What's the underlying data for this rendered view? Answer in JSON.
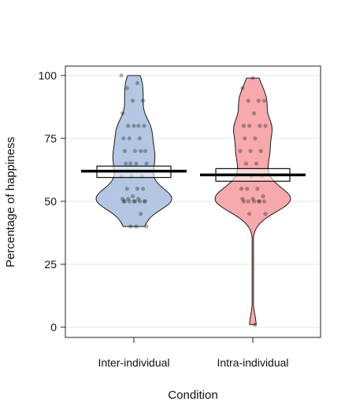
{
  "chart_data": {
    "type": "violin",
    "title": "",
    "xlabel": "Condition",
    "ylabel": "Percentage of happiness",
    "ylim": [
      0,
      100
    ],
    "yticks": [
      0,
      25,
      50,
      75,
      100
    ],
    "grid": "horizontal",
    "legend": "none",
    "categories": [
      "Inter-individual",
      "Intra-individual"
    ],
    "series": [
      {
        "category": "Inter-individual",
        "color": "#b3c7e2",
        "mean": 62,
        "ci_lower": 59.5,
        "ci_upper": 64,
        "min": 40,
        "max": 100,
        "points": [
          100,
          97,
          95,
          90,
          90,
          85,
          80,
          80,
          80,
          80,
          75,
          75,
          75,
          70,
          70,
          70,
          70,
          65,
          65,
          65,
          65,
          60,
          60,
          60,
          55,
          55,
          55,
          52,
          51,
          51,
          51,
          50,
          50,
          50,
          50,
          50,
          50,
          50,
          50,
          45,
          40,
          40,
          40
        ]
      },
      {
        "category": "Intra-individual",
        "color": "#f7a9ad",
        "mean": 60.5,
        "ci_lower": 58,
        "ci_upper": 63,
        "min": 1,
        "max": 99,
        "points": [
          99,
          95,
          90,
          90,
          90,
          85,
          80,
          80,
          80,
          80,
          75,
          75,
          70,
          70,
          70,
          65,
          65,
          60,
          60,
          55,
          55,
          55,
          52,
          51,
          51,
          50,
          50,
          50,
          50,
          50,
          50,
          45,
          45,
          1
        ]
      }
    ]
  }
}
